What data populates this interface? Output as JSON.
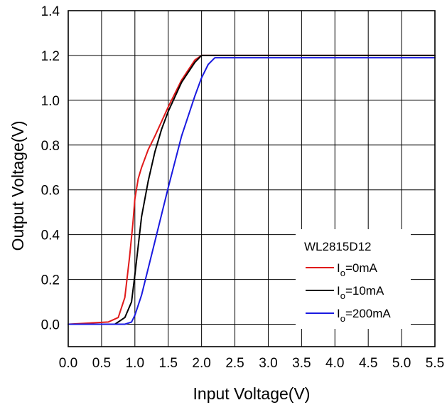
{
  "chart_data": {
    "type": "line",
    "title": "",
    "xlabel": "Input Voltage(V)",
    "ylabel": "Output Voltage(V)",
    "xlim": [
      0.0,
      5.5
    ],
    "ylim": [
      -0.1,
      1.4
    ],
    "x_ticks": [
      "0.0",
      "0.5",
      "1.0",
      "1.5",
      "2.0",
      "2.5",
      "3.0",
      "3.5",
      "4.0",
      "4.5",
      "5.0",
      "5.5"
    ],
    "y_ticks": [
      "0.0",
      "0.2",
      "0.4",
      "0.6",
      "0.8",
      "1.0",
      "1.2",
      "1.4"
    ],
    "grid": true,
    "legend": {
      "title": "WL2815D12",
      "position": "bottom-right"
    },
    "series": [
      {
        "name": "Io=0mA",
        "label_main": "I",
        "label_sub": "o",
        "label_rest": "=0mA",
        "color": "#e01a1a",
        "x": [
          0.0,
          0.6,
          0.75,
          0.85,
          0.92,
          0.97,
          1.0,
          1.05,
          1.1,
          1.2,
          1.3,
          1.5,
          1.7,
          1.9,
          2.0,
          2.05,
          5.5
        ],
        "y": [
          0.0,
          0.01,
          0.03,
          0.12,
          0.3,
          0.45,
          0.56,
          0.65,
          0.7,
          0.78,
          0.84,
          0.97,
          1.09,
          1.18,
          1.2,
          1.2,
          1.2
        ]
      },
      {
        "name": "Io=10mA",
        "label_main": "I",
        "label_sub": "o",
        "label_rest": "=10mA",
        "color": "#000000",
        "x": [
          0.0,
          0.7,
          0.85,
          0.95,
          1.0,
          1.05,
          1.1,
          1.2,
          1.3,
          1.4,
          1.5,
          1.7,
          1.9,
          2.0,
          2.1,
          5.5
        ],
        "y": [
          0.0,
          0.0,
          0.03,
          0.1,
          0.22,
          0.35,
          0.48,
          0.64,
          0.77,
          0.87,
          0.95,
          1.08,
          1.17,
          1.2,
          1.2,
          1.2
        ]
      },
      {
        "name": "Io=200mA",
        "label_main": "I",
        "label_sub": "o",
        "label_rest": "=200mA",
        "color": "#1a1ae0",
        "x": [
          0.0,
          0.85,
          0.95,
          1.0,
          1.1,
          1.3,
          1.5,
          1.7,
          1.9,
          2.0,
          2.1,
          2.2,
          2.3,
          5.5
        ],
        "y": [
          0.0,
          0.0,
          0.01,
          0.04,
          0.13,
          0.37,
          0.61,
          0.84,
          1.02,
          1.1,
          1.16,
          1.19,
          1.19,
          1.19
        ]
      }
    ]
  }
}
